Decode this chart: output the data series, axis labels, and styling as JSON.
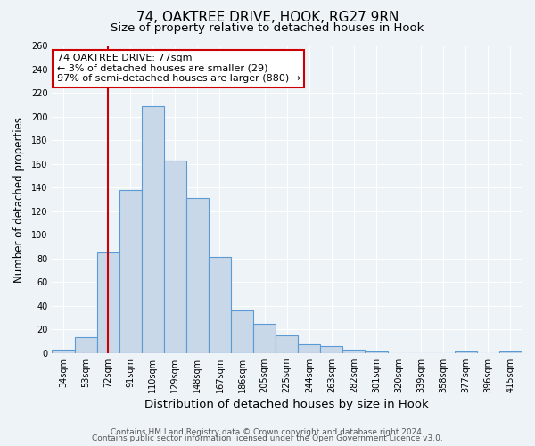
{
  "title": "74, OAKTREE DRIVE, HOOK, RG27 9RN",
  "subtitle": "Size of property relative to detached houses in Hook",
  "xlabel": "Distribution of detached houses by size in Hook",
  "ylabel": "Number of detached properties",
  "bar_labels": [
    "34sqm",
    "53sqm",
    "72sqm",
    "91sqm",
    "110sqm",
    "129sqm",
    "148sqm",
    "167sqm",
    "186sqm",
    "205sqm",
    "225sqm",
    "244sqm",
    "263sqm",
    "282sqm",
    "301sqm",
    "320sqm",
    "339sqm",
    "358sqm",
    "377sqm",
    "396sqm",
    "415sqm"
  ],
  "bar_values": [
    3,
    13,
    85,
    138,
    209,
    163,
    131,
    81,
    36,
    25,
    15,
    7,
    6,
    3,
    1,
    0,
    0,
    0,
    1,
    0,
    1
  ],
  "bar_color": "#c8d8e8",
  "bar_edge_color": "#5b9bd5",
  "vline_x": 2,
  "vline_color": "#cc0000",
  "annotation_line1": "74 OAKTREE DRIVE: 77sqm",
  "annotation_line2": "← 3% of detached houses are smaller (29)",
  "annotation_line3": "97% of semi-detached houses are larger (880) →",
  "annotation_box_color": "#ffffff",
  "annotation_box_edge_color": "#cc0000",
  "ylim": [
    0,
    260
  ],
  "yticks": [
    0,
    20,
    40,
    60,
    80,
    100,
    120,
    140,
    160,
    180,
    200,
    220,
    240,
    260
  ],
  "bg_color": "#eef3f8",
  "grid_color": "#ffffff",
  "footer_line1": "Contains HM Land Registry data © Crown copyright and database right 2024.",
  "footer_line2": "Contains public sector information licensed under the Open Government Licence v3.0.",
  "title_fontsize": 11,
  "subtitle_fontsize": 9.5,
  "xlabel_fontsize": 9.5,
  "ylabel_fontsize": 8.5,
  "annotation_fontsize": 8,
  "tick_fontsize": 7,
  "footer_fontsize": 6.5
}
